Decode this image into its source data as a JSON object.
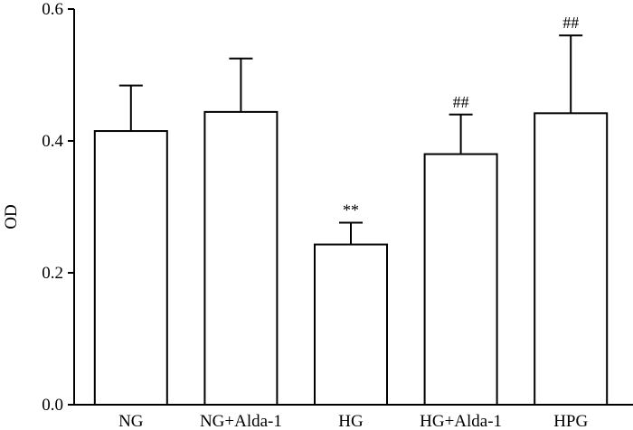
{
  "chart_data": {
    "type": "bar",
    "title": "",
    "xlabel": "",
    "ylabel": "OD",
    "ylim": [
      0.0,
      0.6
    ],
    "y_ticks": [
      "0.0",
      "0.2",
      "0.4",
      "0.6"
    ],
    "y_tick_values": [
      0.0,
      0.2,
      0.4,
      0.6
    ],
    "categories": [
      "NG",
      "NG+Alda-1",
      "HG",
      "HG+Alda-1",
      "HPG"
    ],
    "values": [
      0.415,
      0.444,
      0.243,
      0.38,
      0.442
    ],
    "error_upper": [
      0.484,
      0.525,
      0.276,
      0.44,
      0.56
    ],
    "annotations": [
      "",
      "",
      "**",
      "##",
      "##"
    ],
    "grid": false,
    "colors": {
      "bar_fill": "#ffffff",
      "bar_stroke": "#000000",
      "axis": "#000000"
    }
  }
}
